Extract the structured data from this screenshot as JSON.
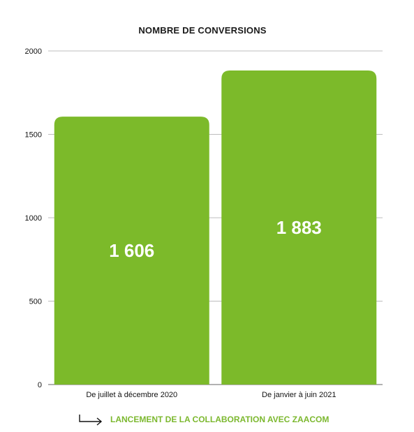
{
  "chart_data": {
    "type": "bar",
    "title": "NOMBRE DE CONVERSIONS",
    "categories": [
      "De juillet à décembre 2020",
      "De janvier à juin 2021"
    ],
    "values": [
      1606,
      1883
    ],
    "value_labels": [
      "1 606",
      "1 883"
    ],
    "ylim": [
      0,
      2000
    ],
    "yticks": [
      0,
      500,
      1000,
      1500,
      2000
    ],
    "bar_color": "#7cba2a",
    "grid": true,
    "legend": "none"
  },
  "footnote": {
    "text": "LANCEMENT DE LA COLLABORATION AVEC ZAACOM",
    "icon": "arrow-right-turn-icon",
    "color": "#7cb82f"
  }
}
